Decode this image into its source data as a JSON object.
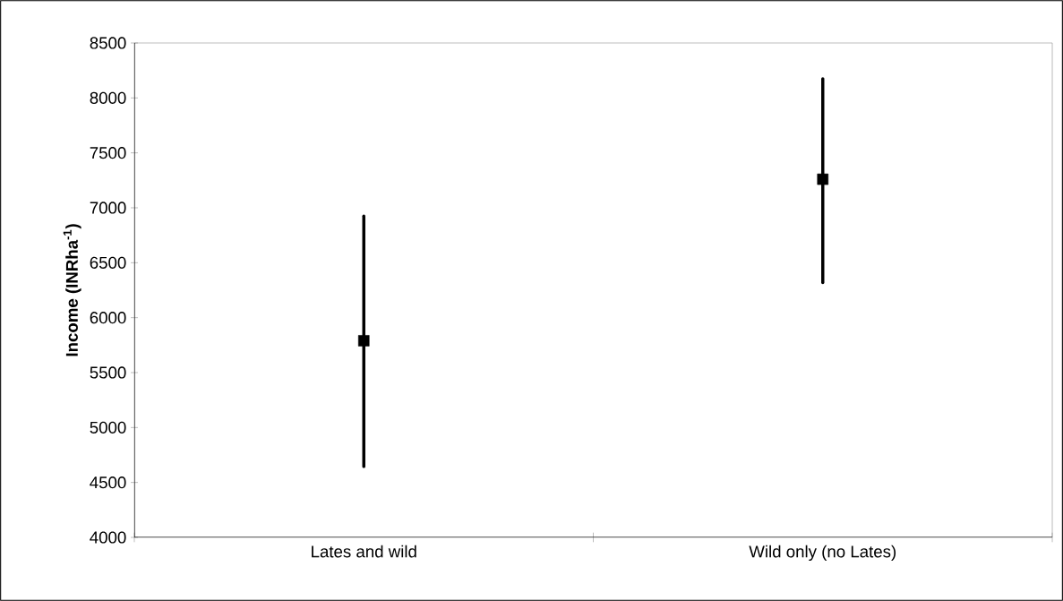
{
  "chart_data": {
    "type": "scatter",
    "categories": [
      "Lates and wild",
      "Wild only (no Lates)"
    ],
    "values": [
      5790,
      7260
    ],
    "errors": [
      [
        4645,
        6925
      ],
      [
        6320,
        8175
      ]
    ],
    "color": "#000000",
    "marker": "square",
    "ylabel": "Income (INRha$^{-1}$)",
    "ylim": [
      4000,
      8500
    ],
    "yticks": [
      4000,
      4500,
      5000,
      5500,
      6000,
      6500,
      7000,
      7500,
      8000,
      8500
    ]
  }
}
